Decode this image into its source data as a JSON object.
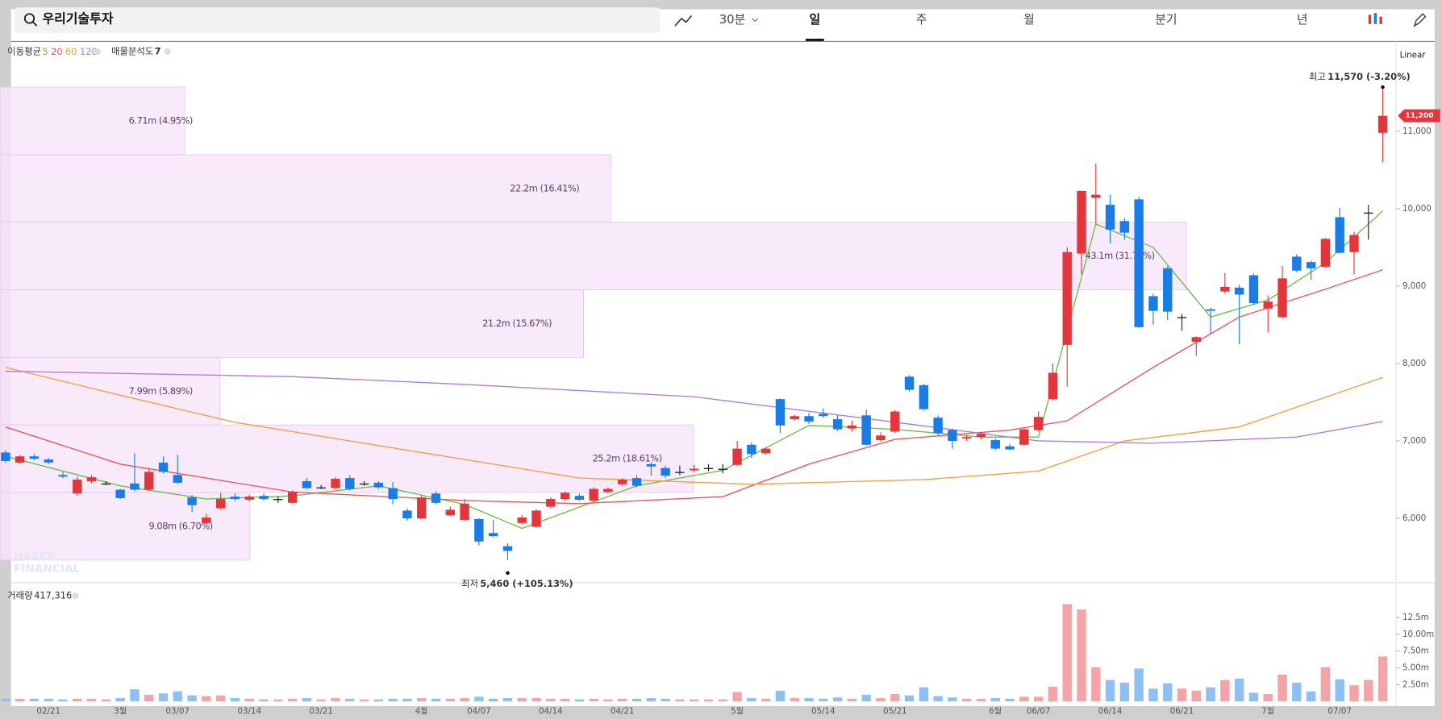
{
  "ui": {
    "search": "우리기술투자",
    "interval": "30분",
    "tabs": [
      "일",
      "주",
      "월",
      "분기",
      "년"
    ],
    "ma_label": "이동평균",
    "profile_label": "매물분석도",
    "profile_count": 7,
    "scale": "Linear",
    "volume_label": "거래량",
    "volume_value": "417,316",
    "watermark": [
      "NAVER",
      "FINANCIAL"
    ]
  },
  "chart_data": {
    "type": "candlestick",
    "up_color": "#e3363c",
    "down_color": "#1a7de6",
    "flat_color": "#222222",
    "up_volume_color": "#f4a3a6",
    "down_volume_color": "#8ec0f3",
    "ylim": [
      5190,
      12160
    ],
    "volume_ylim": [
      0,
      15750000
    ],
    "yticks": [
      {
        "value": 6000,
        "label": "6,000"
      },
      {
        "value": 7000,
        "label": "7,000"
      },
      {
        "value": 8000,
        "label": "8,000"
      },
      {
        "value": 9000,
        "label": "9,000"
      },
      {
        "value": 10000,
        "label": "10,000"
      },
      {
        "value": 11000,
        "label": "11,000"
      }
    ],
    "volume_ticks": [
      {
        "value": 2500000,
        "label": "2.50m"
      },
      {
        "value": 5000000,
        "label": "5.00m"
      },
      {
        "value": 7500000,
        "label": "7.50m"
      },
      {
        "value": 10000000,
        "label": "10.00m"
      },
      {
        "value": 12500000,
        "label": "12.5m"
      }
    ],
    "current_price": {
      "value": 11200,
      "label": "11,200"
    },
    "high_mark": {
      "prefix": "최고",
      "value": 11570,
      "label": "11,570 (-3.20%)"
    },
    "low_mark": {
      "prefix": "최저",
      "value": 5460,
      "label": "5,460 (+105.13%)"
    },
    "dates": [
      null,
      null,
      null,
      "02/21",
      null,
      null,
      null,
      null,
      "3월",
      null,
      null,
      null,
      "03/07",
      null,
      null,
      null,
      null,
      "03/14",
      null,
      null,
      null,
      null,
      "03/21",
      null,
      null,
      null,
      null,
      null,
      null,
      "4월",
      null,
      null,
      null,
      "04/07",
      null,
      null,
      null,
      null,
      "04/14",
      null,
      null,
      null,
      null,
      "04/21",
      null,
      null,
      null,
      null,
      null,
      null,
      null,
      "5월",
      null,
      null,
      null,
      null,
      null,
      "05/14",
      null,
      null,
      null,
      null,
      "05/21",
      null,
      null,
      null,
      null,
      null,
      null,
      "6월",
      null,
      null,
      "06/07",
      null,
      null,
      null,
      null,
      "06/14",
      null,
      null,
      null,
      null,
      "06/21",
      null,
      null,
      null,
      null,
      null,
      "7월",
      null,
      null,
      null,
      null,
      "07/07",
      null,
      null,
      null
    ],
    "open": [
      6850,
      6720,
      6800,
      6760,
      6560,
      6320,
      6480,
      6450,
      6370,
      6450,
      6370,
      6720,
      6560,
      6270,
      5940,
      6130,
      6280,
      6240,
      6290,
      6250,
      6200,
      6480,
      6400,
      6390,
      6520,
      6450,
      6460,
      6390,
      6100,
      6000,
      6320,
      6040,
      5980,
      5990,
      5810,
      5640,
      5940,
      5890,
      6150,
      6250,
      6290,
      6230,
      6340,
      6440,
      6520,
      6700,
      6650,
      6600,
      6620,
      6650,
      6640,
      6690,
      6950,
      6840,
      7540,
      7280,
      7320,
      7350,
      7280,
      7160,
      7330,
      7010,
      7120,
      7830,
      7720,
      7300,
      7140,
      7030,
      7050,
      7010,
      6930,
      6950,
      7140,
      7540,
      8240,
      9420,
      10140,
      10050,
      9840,
      10120,
      8870,
      9230,
      8600,
      8280,
      8700,
      8930,
      8980,
      9140,
      8710,
      8600,
      9380,
      9310,
      9250,
      9890,
      9440,
      9950,
      10980
    ],
    "high": [
      6880,
      6820,
      6830,
      6780,
      6600,
      6540,
      6560,
      6480,
      6380,
      6840,
      6650,
      6800,
      6820,
      6300,
      6060,
      6330,
      6320,
      6300,
      6320,
      6280,
      6360,
      6520,
      6430,
      6530,
      6560,
      6480,
      6480,
      6470,
      6130,
      6300,
      6350,
      6150,
      6250,
      6000,
      5980,
      5680,
      6040,
      6120,
      6270,
      6350,
      6320,
      6400,
      6400,
      6520,
      6560,
      6720,
      6680,
      6680,
      6690,
      6700,
      6700,
      7000,
      6980,
      6920,
      7550,
      7340,
      7360,
      7420,
      7330,
      7260,
      7400,
      7110,
      7400,
      7850,
      7740,
      7330,
      7160,
      7080,
      7110,
      7030,
      6960,
      7160,
      7380,
      8000,
      9500,
      10230,
      10580,
      10180,
      9880,
      10150,
      8900,
      9260,
      8640,
      8350,
      8720,
      9170,
      9020,
      9160,
      8880,
      9260,
      9410,
      9330,
      9620,
      10010,
      9700,
      10050,
      11570
    ],
    "low": [
      6720,
      6700,
      6750,
      6700,
      6520,
      6290,
      6450,
      6430,
      6250,
      6350,
      6360,
      6580,
      6450,
      6080,
      5920,
      6110,
      6220,
      6220,
      6230,
      6200,
      6190,
      6380,
      6380,
      6370,
      6360,
      6420,
      6380,
      6180,
      5970,
      5990,
      6180,
      6030,
      5970,
      5650,
      5760,
      5460,
      5920,
      5880,
      6130,
      6230,
      6230,
      6210,
      6320,
      6420,
      6400,
      6550,
      6520,
      6560,
      6600,
      6610,
      6580,
      6680,
      6780,
      6820,
      7100,
      7260,
      7220,
      7300,
      7130,
      7120,
      6940,
      6990,
      7100,
      7640,
      7390,
      7060,
      6900,
      7000,
      7020,
      6880,
      6880,
      6940,
      7120,
      7520,
      7700,
      9150,
      9800,
      9550,
      9600,
      8460,
      8500,
      8560,
      8420,
      8100,
      8380,
      8900,
      8250,
      8760,
      8400,
      8580,
      9180,
      9080,
      9240,
      9420,
      9150,
      9600,
      10600
    ],
    "close": [
      6740,
      6800,
      6770,
      6720,
      6540,
      6500,
      6530,
      6450,
      6260,
      6370,
      6600,
      6600,
      6460,
      6170,
      6010,
      6250,
      6250,
      6280,
      6250,
      6250,
      6340,
      6390,
      6400,
      6510,
      6380,
      6450,
      6400,
      6250,
      6000,
      6270,
      6200,
      6110,
      6190,
      5700,
      5770,
      5580,
      6010,
      6100,
      6250,
      6330,
      6240,
      6380,
      6380,
      6500,
      6420,
      6670,
      6550,
      6600,
      6640,
      6650,
      6640,
      6900,
      6830,
      6900,
      7200,
      7320,
      7250,
      7320,
      7150,
      7200,
      6950,
      7070,
      7380,
      7660,
      7410,
      7100,
      7000,
      7050,
      7090,
      6900,
      6890,
      7150,
      7310,
      7880,
      9440,
      10230,
      10180,
      9730,
      9690,
      8470,
      8680,
      8670,
      8600,
      8340,
      8680,
      8990,
      8890,
      8780,
      8800,
      9100,
      9200,
      9230,
      9610,
      9430,
      9660,
      9950,
      11200
    ],
    "volume": [
      400000,
      400000,
      400000,
      400000,
      300000,
      400000,
      400000,
      300000,
      500000,
      1800000,
      1000000,
      1200000,
      1500000,
      900000,
      800000,
      900000,
      500000,
      400000,
      300000,
      300000,
      400000,
      500000,
      300000,
      500000,
      400000,
      300000,
      300000,
      400000,
      400000,
      500000,
      400000,
      400000,
      500000,
      700000,
      400000,
      500000,
      500000,
      500000,
      400000,
      400000,
      300000,
      400000,
      300000,
      400000,
      400000,
      500000,
      400000,
      300000,
      300000,
      300000,
      300000,
      1400000,
      500000,
      400000,
      1600000,
      500000,
      500000,
      400000,
      600000,
      400000,
      1000000,
      500000,
      1100000,
      900000,
      2100000,
      800000,
      600000,
      400000,
      400000,
      500000,
      400000,
      700000,
      700000,
      2200000,
      14500000,
      13700000,
      5100000,
      3200000,
      2800000,
      4900000,
      1900000,
      2700000,
      1900000,
      1600000,
      2100000,
      3200000,
      3400000,
      1300000,
      1100000,
      4000000,
      2800000,
      1500000,
      5100000,
      3300000,
      2400000,
      3200000,
      6700000
    ],
    "moving_averages": [
      {
        "name": "5",
        "color": "#6abf4b",
        "x": [
          0,
          8,
          14,
          20,
          26,
          32,
          36,
          44,
          50,
          56,
          62,
          68,
          72,
          76,
          80,
          84,
          88,
          92,
          96
        ],
        "values": [
          6800,
          6420,
          6250,
          6290,
          6420,
          6180,
          5870,
          6420,
          6620,
          7200,
          7150,
          7050,
          7050,
          9800,
          9500,
          8600,
          8820,
          9300,
          9970
        ]
      },
      {
        "name": "20",
        "color": "#e8575a",
        "x": [
          0,
          8,
          20,
          32,
          40,
          50,
          56,
          62,
          70,
          74,
          80,
          86,
          92,
          96
        ],
        "values": [
          7180,
          6700,
          6340,
          6230,
          6190,
          6280,
          6700,
          7020,
          7140,
          7260,
          7950,
          8600,
          8960,
          9210
        ]
      },
      {
        "name": "60",
        "color": "#f0a040",
        "x": [
          0,
          8,
          16,
          28,
          40,
          52,
          64,
          72,
          78,
          86,
          96
        ],
        "values": [
          7950,
          7590,
          7240,
          6880,
          6520,
          6440,
          6500,
          6610,
          7000,
          7180,
          7820
        ]
      },
      {
        "name": "120",
        "color": "#b07cd8",
        "x": [
          0,
          20,
          32,
          48,
          60,
          72,
          80,
          90,
          96
        ],
        "values": [
          7900,
          7830,
          7730,
          7570,
          7290,
          7000,
          6970,
          7050,
          7250
        ]
      }
    ],
    "volume_profile": [
      {
        "volume": 6710000,
        "label": "6.71m (4.95%)"
      },
      {
        "volume": 22200000,
        "label": "22.2m (16.41%)"
      },
      {
        "volume": 43100000,
        "label": "43.1m (31.77%)"
      },
      {
        "volume": 21200000,
        "label": "21.2m (15.67%)"
      },
      {
        "volume": 7990000,
        "label": "7.99m (5.89%)"
      },
      {
        "volume": 25200000,
        "label": "25.2m (18.61%)"
      },
      {
        "volume": 9080000,
        "label": "9.08m (6.70%)"
      }
    ]
  }
}
